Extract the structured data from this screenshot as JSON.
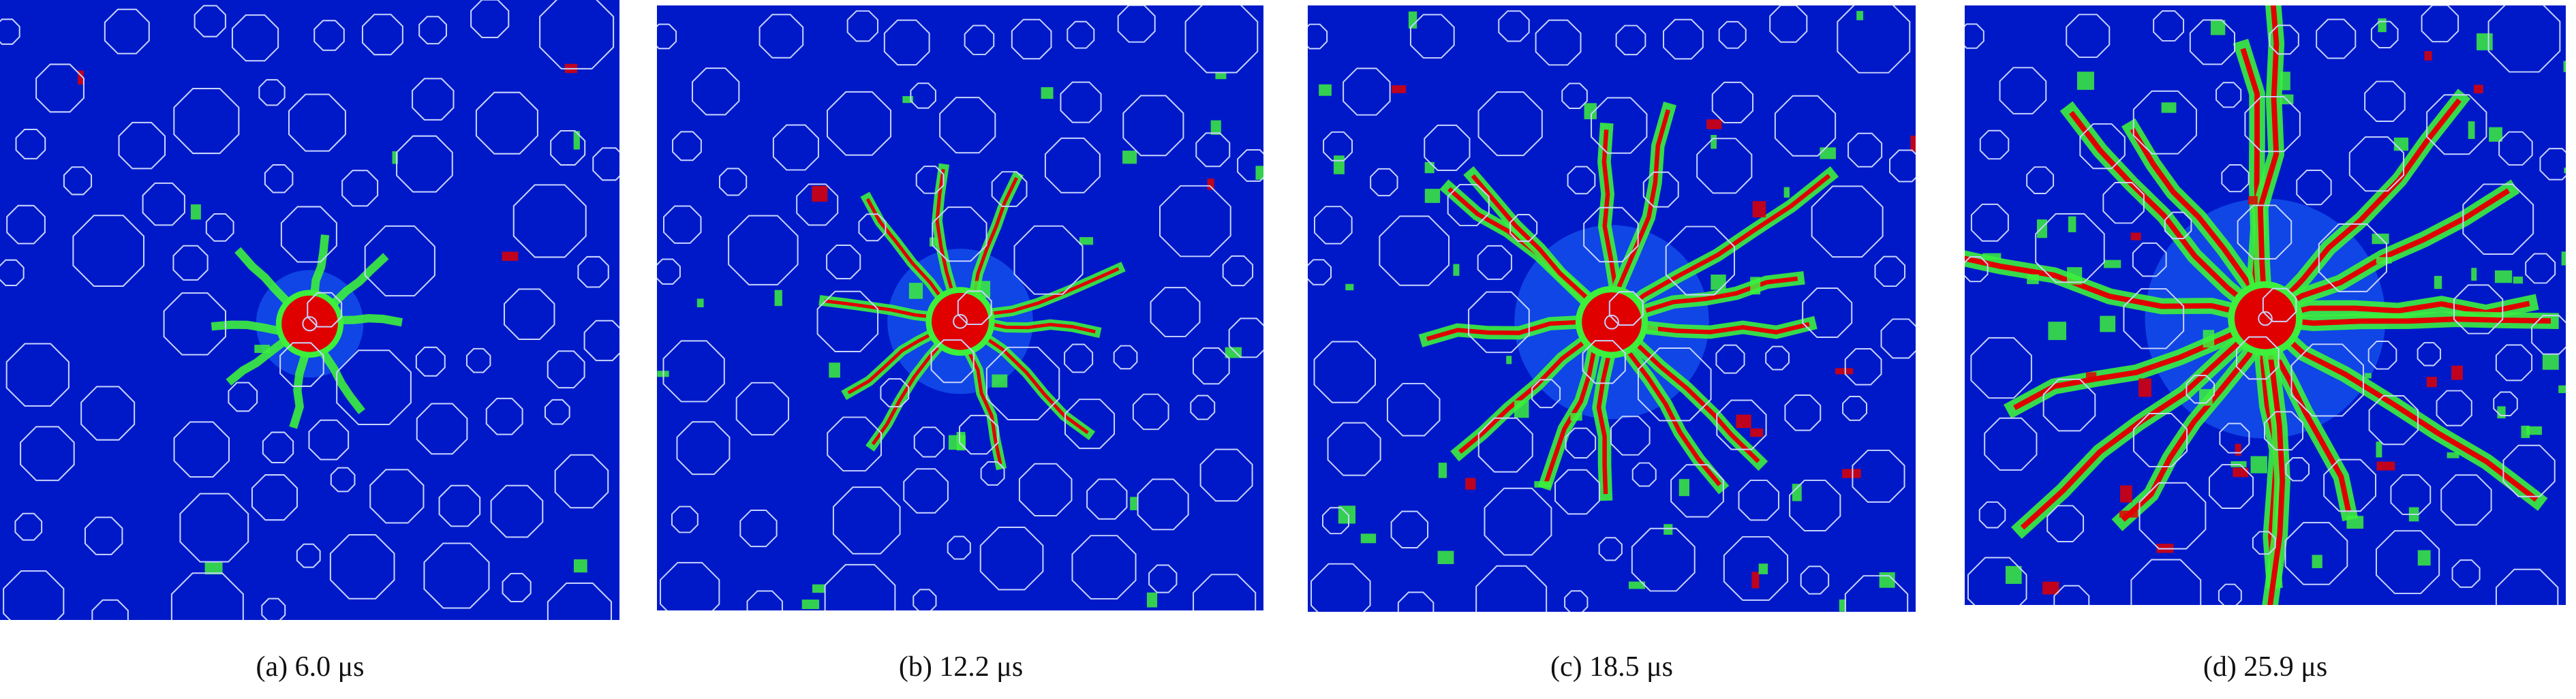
{
  "colors": {
    "background": "#0019c8",
    "aggregate_outline": "#c8d4ff",
    "damage_low": "#1e6bff",
    "damage_mid": "#3cf03c",
    "damage_high": "#e00000"
  },
  "panels": [
    {
      "caption": "(a) 6.0 μs",
      "damage_level": 0.15
    },
    {
      "caption": "(b) 12.2 μs",
      "damage_level": 0.4
    },
    {
      "caption": "(c) 18.5 μs",
      "damage_level": 0.7
    },
    {
      "caption": "(d) 25.9 μs",
      "damage_level": 1.0
    }
  ]
}
